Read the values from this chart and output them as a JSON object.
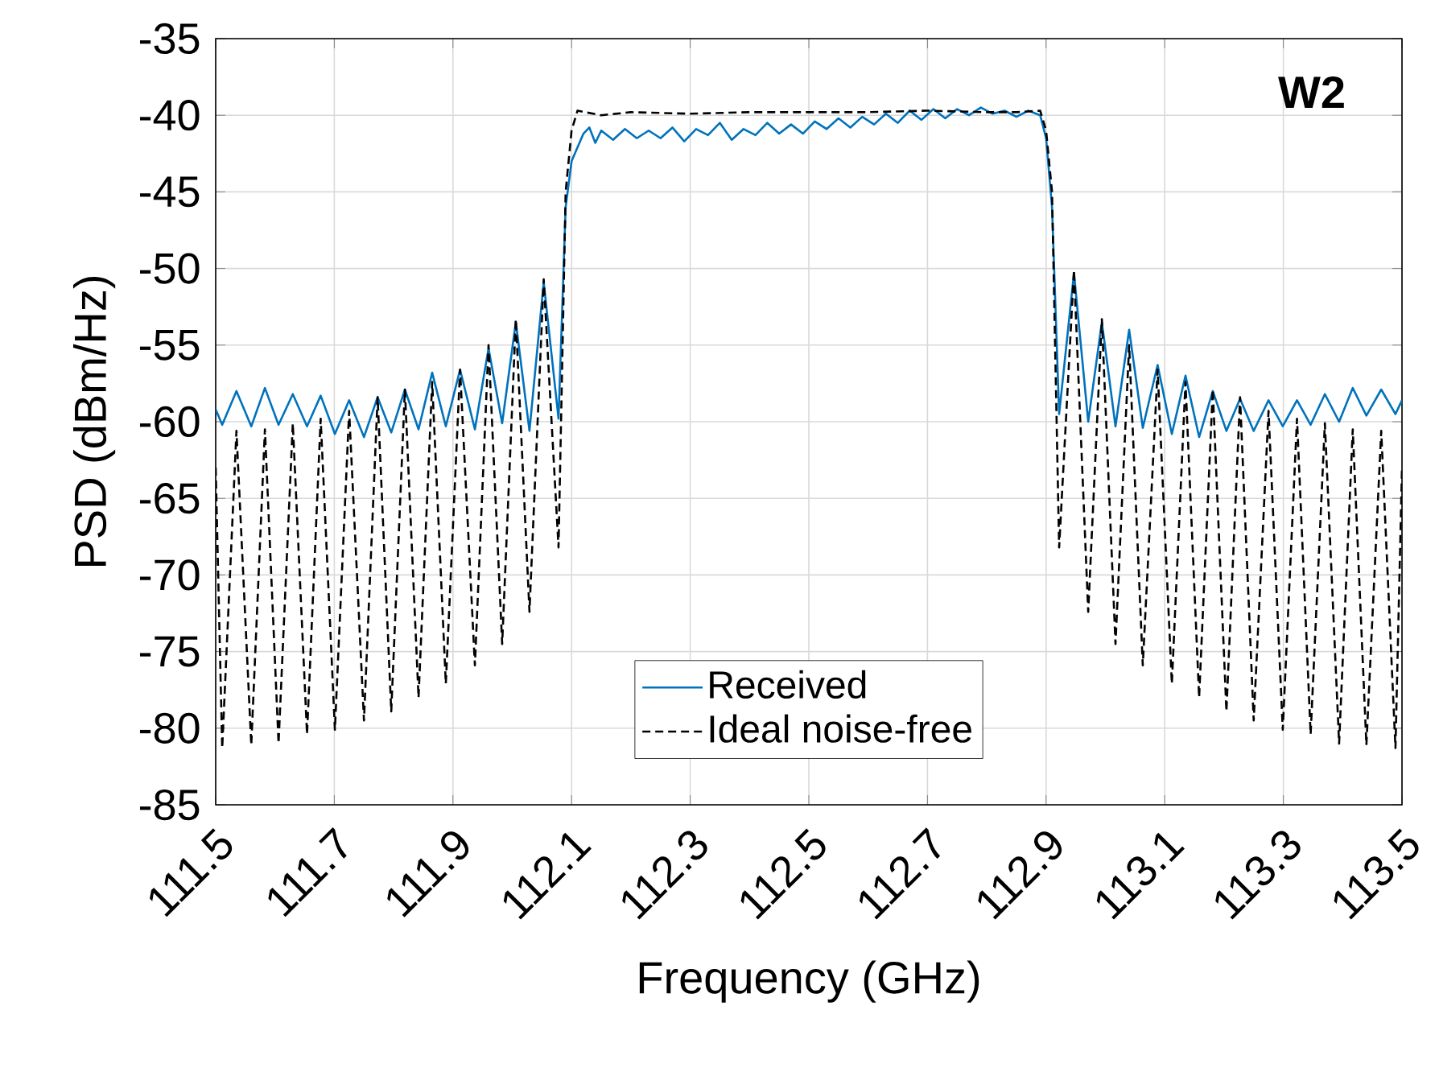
{
  "chart_data": {
    "type": "line",
    "xlabel": "Frequency (GHz)",
    "ylabel": "PSD (dBm/Hz)",
    "annotations": [
      "W2"
    ],
    "xlim": [
      111.5,
      113.5
    ],
    "ylim": [
      -85,
      -35
    ],
    "xticks": [
      111.5,
      111.7,
      111.9,
      112.1,
      112.3,
      112.5,
      112.7,
      112.9,
      113.1,
      113.3,
      113.5
    ],
    "yticks": [
      -85,
      -80,
      -75,
      -70,
      -65,
      -60,
      -55,
      -50,
      -45,
      -40,
      -35
    ],
    "grid": true,
    "legend": "bottom",
    "series": [
      {
        "name": "Received",
        "color": "#0072bd",
        "line_style": "solid",
        "x": [
          111.5,
          111.511,
          111.535,
          111.56,
          111.583,
          111.606,
          111.63,
          111.654,
          111.677,
          111.701,
          111.725,
          111.75,
          111.773,
          111.796,
          111.819,
          111.842,
          111.865,
          111.888,
          111.912,
          111.937,
          111.96,
          111.983,
          112.006,
          112.029,
          112.053,
          112.078,
          112.09,
          112.1,
          112.12,
          112.13,
          112.14,
          112.15,
          112.17,
          112.19,
          112.21,
          112.23,
          112.25,
          112.27,
          112.29,
          112.31,
          112.33,
          112.35,
          112.37,
          112.39,
          112.41,
          112.43,
          112.45,
          112.47,
          112.49,
          112.51,
          112.53,
          112.55,
          112.57,
          112.59,
          112.61,
          112.63,
          112.65,
          112.67,
          112.69,
          112.71,
          112.73,
          112.75,
          112.77,
          112.79,
          112.81,
          112.83,
          112.85,
          112.87,
          112.89,
          112.9,
          112.91,
          112.922,
          112.947,
          112.971,
          112.994,
          113.017,
          113.04,
          113.063,
          113.088,
          113.112,
          113.135,
          113.158,
          113.181,
          113.204,
          113.227,
          113.25,
          113.275,
          113.299,
          113.323,
          113.346,
          113.37,
          113.394,
          113.417,
          113.44,
          113.465,
          113.489,
          113.5
        ],
        "values": [
          -59.2,
          -60.2,
          -58.0,
          -60.3,
          -57.8,
          -60.2,
          -58.2,
          -60.3,
          -58.3,
          -60.8,
          -58.6,
          -61.0,
          -58.4,
          -60.7,
          -57.9,
          -60.5,
          -56.8,
          -60.3,
          -56.6,
          -60.5,
          -55.2,
          -60.1,
          -53.5,
          -60.6,
          -50.9,
          -59.8,
          -46,
          -43,
          -41.2,
          -40.8,
          -41.8,
          -41.0,
          -41.6,
          -40.9,
          -41.5,
          -41.0,
          -41.5,
          -40.8,
          -41.7,
          -40.9,
          -41.3,
          -40.5,
          -41.6,
          -40.9,
          -41.3,
          -40.5,
          -41.2,
          -40.6,
          -41.2,
          -40.4,
          -40.9,
          -40.2,
          -40.8,
          -40.1,
          -40.6,
          -39.9,
          -40.5,
          -39.7,
          -40.3,
          -39.6,
          -40.2,
          -39.6,
          -40.0,
          -39.5,
          -39.9,
          -39.7,
          -40.1,
          -39.7,
          -40.0,
          -41.5,
          -46,
          -59.5,
          -50.3,
          -60.0,
          -53.5,
          -60.3,
          -54.0,
          -60.4,
          -56.3,
          -60.8,
          -57.0,
          -61.0,
          -58.0,
          -60.6,
          -58.5,
          -60.6,
          -58.6,
          -60.3,
          -58.6,
          -60.2,
          -58.2,
          -60.0,
          -57.8,
          -59.6,
          -57.9,
          -59.5,
          -58.6
        ]
      },
      {
        "name": "Ideal noise-free",
        "color": "#000000",
        "line_style": "dashed",
        "x": [
          111.5,
          111.511,
          111.535,
          111.56,
          111.583,
          111.606,
          111.63,
          111.654,
          111.677,
          111.701,
          111.725,
          111.75,
          111.773,
          111.796,
          111.819,
          111.842,
          111.865,
          111.888,
          111.912,
          111.937,
          111.96,
          111.983,
          112.006,
          112.029,
          112.053,
          112.078,
          112.09,
          112.1,
          112.11,
          112.15,
          112.2,
          112.3,
          112.4,
          112.5,
          112.6,
          112.7,
          112.8,
          112.85,
          112.89,
          112.9,
          112.91,
          112.922,
          112.947,
          112.971,
          112.994,
          113.017,
          113.04,
          113.063,
          113.088,
          113.112,
          113.135,
          113.158,
          113.181,
          113.204,
          113.227,
          113.25,
          113.275,
          113.299,
          113.323,
          113.346,
          113.37,
          113.394,
          113.417,
          113.44,
          113.465,
          113.489,
          113.5
        ],
        "values": [
          -63,
          -81.3,
          -60.6,
          -81.1,
          -60.5,
          -81.0,
          -60.1,
          -80.4,
          -59.8,
          -80.1,
          -59.3,
          -79.5,
          -58.4,
          -78.9,
          -57.9,
          -78.0,
          -57.4,
          -77.1,
          -56.6,
          -75.9,
          -55.0,
          -74.5,
          -53.3,
          -72.4,
          -50.7,
          -68.2,
          -45,
          -41,
          -39.7,
          -40.0,
          -39.8,
          -39.9,
          -39.8,
          -39.8,
          -39.8,
          -39.7,
          -39.8,
          -39.8,
          -39.7,
          -41,
          -45,
          -68.2,
          -50.1,
          -72.4,
          -53.3,
          -74.5,
          -55.0,
          -75.9,
          -56.6,
          -77.1,
          -57.4,
          -78.0,
          -57.9,
          -78.9,
          -58.4,
          -79.5,
          -59.3,
          -80.1,
          -59.8,
          -80.4,
          -60.1,
          -81.0,
          -60.5,
          -81.1,
          -60.6,
          -81.3,
          -63
        ]
      }
    ]
  }
}
